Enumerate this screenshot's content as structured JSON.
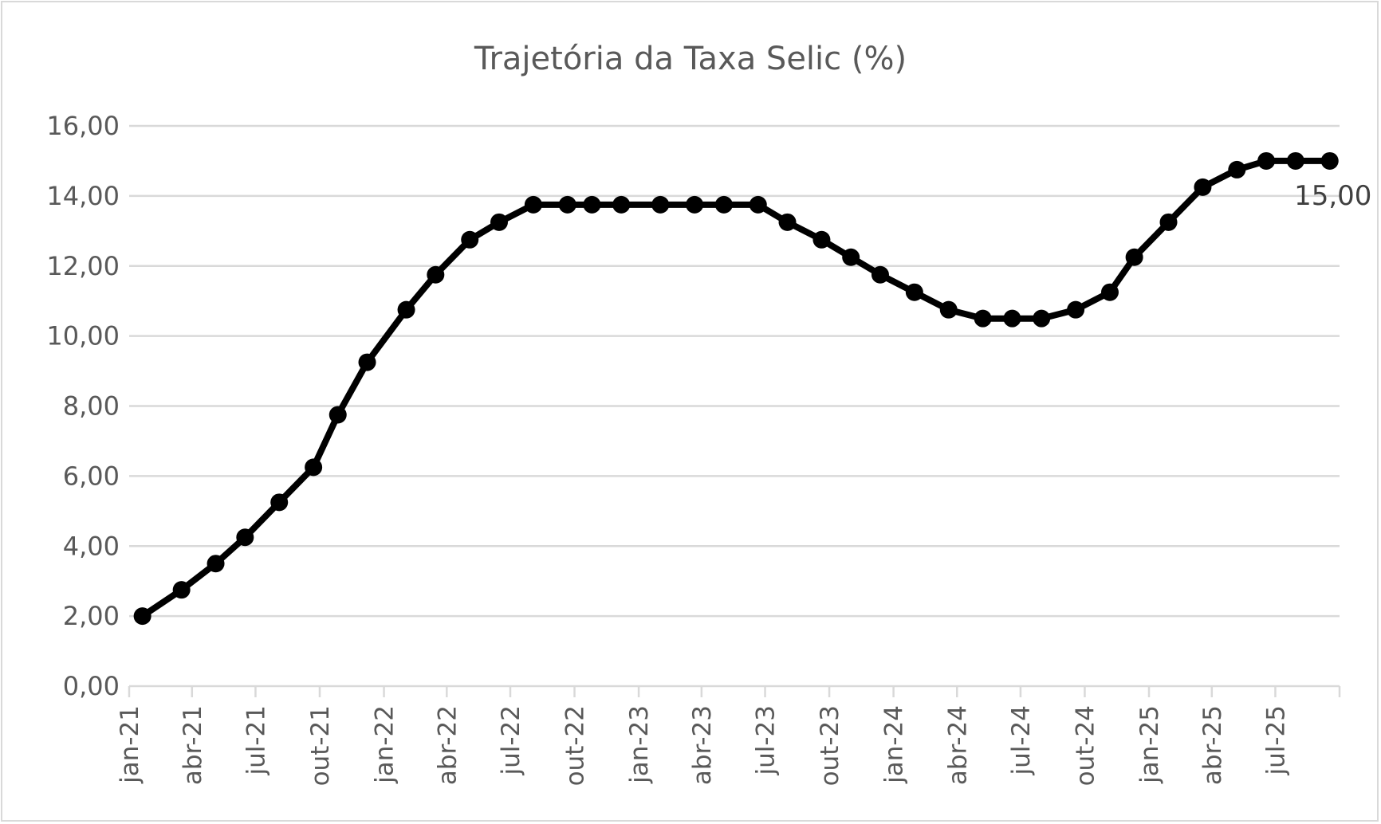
{
  "chart_data": {
    "type": "line",
    "title": "Trajetória da Taxa Selic (%)",
    "xlabel": "",
    "ylabel": "",
    "ylim": [
      0,
      16
    ],
    "yticks": [
      0,
      2,
      4,
      6,
      8,
      10,
      12,
      14,
      16
    ],
    "ytick_labels": [
      "0,00",
      "2,00",
      "4,00",
      "6,00",
      "8,00",
      "10,00",
      "12,00",
      "14,00",
      "16,00"
    ],
    "xtick_labels": [
      "jan-21",
      "abr-21",
      "jul-21",
      "out-21",
      "jan-22",
      "abr-22",
      "jul-22",
      "out-22",
      "jan-23",
      "abr-23",
      "jul-23",
      "out-23",
      "jan-24",
      "abr-24",
      "jul-24",
      "out-24",
      "jan-25",
      "abr-25",
      "jul-25"
    ],
    "grid": true,
    "legend": "none",
    "color": "#000000",
    "series": [
      {
        "x": [
          "2021-01-20",
          "2021-03-17",
          "2021-05-05",
          "2021-06-16",
          "2021-08-04",
          "2021-09-22",
          "2021-10-27",
          "2021-12-08",
          "2022-02-02",
          "2022-03-16",
          "2022-05-04",
          "2022-06-15",
          "2022-08-03",
          "2022-09-21",
          "2022-10-26",
          "2022-12-07",
          "2023-02-01",
          "2023-03-22",
          "2023-05-03",
          "2023-06-21",
          "2023-08-02",
          "2023-09-20",
          "2023-11-01",
          "2023-12-13",
          "2024-01-31",
          "2024-03-20",
          "2024-05-08",
          "2024-06-19",
          "2024-07-31",
          "2024-09-18",
          "2024-11-06",
          "2024-12-11",
          "2025-01-29",
          "2025-03-19",
          "2025-05-07",
          "2025-06-18",
          "2025-07-30",
          "2025-09-17"
        ],
        "values": [
          2.0,
          2.75,
          3.5,
          4.25,
          5.25,
          6.25,
          7.75,
          9.25,
          10.75,
          11.75,
          12.75,
          13.25,
          13.75,
          13.75,
          13.75,
          13.75,
          13.75,
          13.75,
          13.75,
          13.75,
          13.25,
          12.75,
          12.25,
          11.75,
          11.25,
          10.75,
          10.5,
          10.5,
          10.5,
          10.75,
          11.25,
          12.25,
          13.25,
          14.25,
          14.75,
          15.0,
          15.0,
          15.0
        ]
      }
    ],
    "data_labels": [
      {
        "x": "2025-09-17",
        "text": "15,00"
      }
    ]
  }
}
